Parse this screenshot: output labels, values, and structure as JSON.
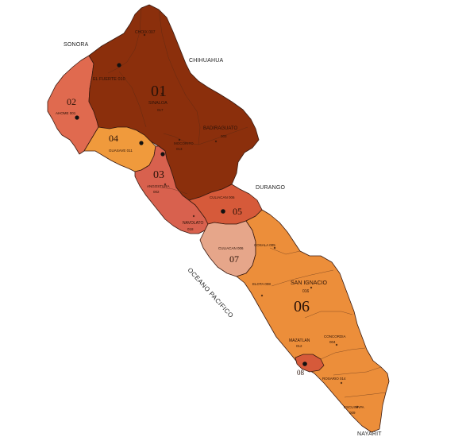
{
  "neighbors": {
    "north_west": "SONORA",
    "north_east": "CHIHUAHUA",
    "east": "DURANGO",
    "south": "NAYARIT"
  },
  "ocean_label": "OCEANO PACIFICO",
  "colors": {
    "district_01": "#8b2f0c",
    "district_02": "#e06a4f",
    "district_03": "#d8614e",
    "district_04": "#f09a3c",
    "district_05": "#d65a3a",
    "district_06": "#ec8e3a",
    "district_07": "#e6a68a",
    "district_08": "#d65a3a",
    "border": "#3a1a10"
  },
  "districts": [
    {
      "id": "01",
      "number": "01"
    },
    {
      "id": "02",
      "number": "02"
    },
    {
      "id": "03",
      "number": "03"
    },
    {
      "id": "04",
      "number": "04"
    },
    {
      "id": "05",
      "number": "05"
    },
    {
      "id": "06",
      "number": "06"
    },
    {
      "id": "07",
      "number": "07"
    },
    {
      "id": "08",
      "number": "08"
    }
  ],
  "municipalities": {
    "choix": "CHOIX 007",
    "el_fuerte": "EL FUERTE 010",
    "sinaloa_name": "SINALOA",
    "sinaloa_code": "017",
    "ahome": "AHOME 001",
    "badiraguato_name": "BADIRAGUATO",
    "badiraguato_code": "003",
    "mocorito_name": "MOCORITO",
    "mocorito_code": "013",
    "guasave": "GUASAVE 011",
    "angostura_name": "ANGOSTURA",
    "angostura_code": "002",
    "culiacan_north": "CULIACAN 006",
    "navolato_name": "NAVOLATO",
    "navolato_code": "018",
    "culiacan_south": "CULIACAN 006",
    "cosala": "COSALA 005",
    "elota": "ELOTA 008",
    "san_ignacio_name": "SAN IGNACIO",
    "san_ignacio_code": "016",
    "concordia_name": "CONCORDIA",
    "concordia_code": "004",
    "mazatlan_name": "MAZATLAN",
    "mazatlan_code": "012",
    "rosario": "ROSARIO 014",
    "escuinapa_name": "ESCUINAPA",
    "escuinapa_code": "009"
  }
}
